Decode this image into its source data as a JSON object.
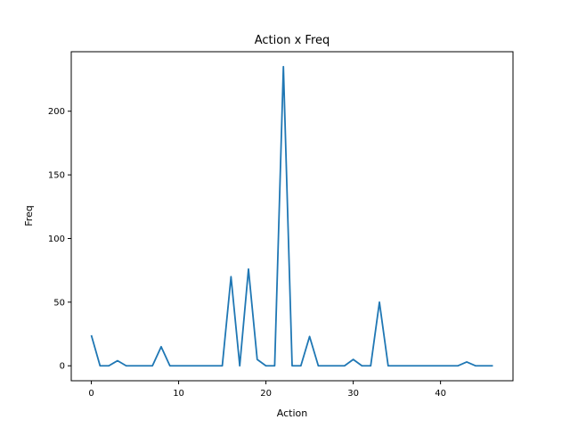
{
  "chart_data": {
    "type": "line",
    "title": "Action x Freq",
    "xlabel": "Action",
    "ylabel": "Freq",
    "xlim": [
      -2.3,
      48.3
    ],
    "ylim": [
      -11.75,
      246.75
    ],
    "xticks": [
      0,
      10,
      20,
      30,
      40
    ],
    "yticks": [
      0,
      50,
      100,
      150,
      200
    ],
    "xtick_labels": [
      "0",
      "10",
      "20",
      "30",
      "40"
    ],
    "ytick_labels": [
      "0",
      "50",
      "100",
      "150",
      "200"
    ],
    "grid": false,
    "color": "#1f77b4",
    "x": [
      0,
      1,
      2,
      3,
      4,
      5,
      6,
      7,
      8,
      9,
      10,
      11,
      12,
      13,
      14,
      15,
      16,
      17,
      18,
      19,
      20,
      21,
      22,
      23,
      24,
      25,
      26,
      27,
      28,
      29,
      30,
      31,
      32,
      33,
      34,
      35,
      36,
      37,
      38,
      39,
      40,
      41,
      42,
      43,
      44,
      45,
      46
    ],
    "values": [
      24,
      0,
      0,
      4,
      0,
      0,
      0,
      0,
      15,
      0,
      0,
      0,
      0,
      0,
      0,
      0,
      70,
      0,
      76,
      5,
      0,
      0,
      235,
      0,
      0,
      23,
      0,
      0,
      0,
      0,
      5,
      0,
      0,
      50,
      0,
      0,
      0,
      0,
      0,
      0,
      0,
      0,
      0,
      3,
      0,
      0,
      0
    ]
  }
}
